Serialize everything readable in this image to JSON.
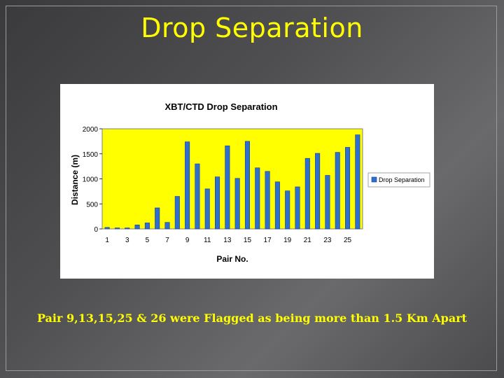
{
  "slide": {
    "title": "Drop Separation",
    "caption": "Pair 9,13,15,25 & 26 were Flagged as being more than 1.5 Km Apart"
  },
  "colors": {
    "title_text": "#ffff00",
    "plot_background": "#ffff00",
    "bar_fill": "#2f6fd0",
    "caption_text": "#ffff00"
  },
  "chart_data": {
    "type": "bar",
    "title": "XBT/CTD Drop Separation",
    "xlabel": "Pair No.",
    "ylabel": "Distance (m)",
    "ylim": [
      0,
      2000
    ],
    "yticks": [
      0,
      500,
      1000,
      1500,
      2000
    ],
    "categories": [
      "1",
      "2",
      "3",
      "4",
      "5",
      "6",
      "7",
      "8",
      "9",
      "10",
      "11",
      "12",
      "13",
      "14",
      "15",
      "16",
      "17",
      "18",
      "19",
      "20",
      "21",
      "22",
      "23",
      "24",
      "25",
      "26"
    ],
    "xtick_labels": [
      "1",
      "3",
      "5",
      "7",
      "9",
      "11",
      "13",
      "15",
      "17",
      "19",
      "21",
      "23",
      "25"
    ],
    "series": [
      {
        "name": "Drop Separation",
        "values": [
          30,
          20,
          20,
          80,
          120,
          420,
          130,
          650,
          1740,
          1300,
          800,
          1040,
          1660,
          1010,
          1750,
          1220,
          1150,
          940,
          760,
          840,
          1410,
          1510,
          1070,
          1530,
          1630,
          1880
        ]
      }
    ],
    "grid": false,
    "legend": "right"
  }
}
